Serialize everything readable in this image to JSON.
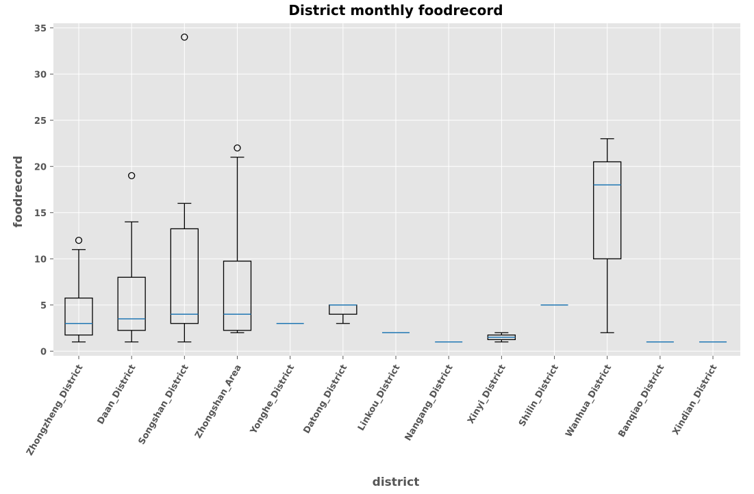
{
  "chart_data": {
    "type": "box",
    "title": "District monthly foodrecord",
    "xlabel": "district",
    "ylabel": "foodrecord",
    "ylim": [
      -0.5,
      35.5
    ],
    "yticks": [
      0,
      5,
      10,
      15,
      20,
      25,
      30,
      35
    ],
    "grid": true,
    "colors": {
      "background": "#e5e5e5",
      "grid": "#ffffff",
      "box": "#000000",
      "median": "#1f77b4",
      "tick_text": "#555555"
    },
    "categories": [
      "Zhongzheng_District",
      "Daan_District",
      "Songshan_District",
      "Zhongshan_Area",
      "Yonghe_District",
      "Datong_District",
      "Linkou_District",
      "Nangang_District",
      "Xinyi_District",
      "Shilin_District",
      "Wanhua_District",
      "Banqiao_District",
      "Xindian_District"
    ],
    "boxes": [
      {
        "whisker_low": 1,
        "q1": 1.75,
        "median": 3,
        "q3": 5.75,
        "whisker_high": 11,
        "outliers": [
          12
        ]
      },
      {
        "whisker_low": 1,
        "q1": 2.25,
        "median": 3.5,
        "q3": 8,
        "whisker_high": 14,
        "outliers": [
          19
        ]
      },
      {
        "whisker_low": 1,
        "q1": 3,
        "median": 4,
        "q3": 13.25,
        "whisker_high": 16,
        "outliers": [
          34
        ]
      },
      {
        "whisker_low": 2,
        "q1": 2.25,
        "median": 4,
        "q3": 9.75,
        "whisker_high": 21,
        "outliers": [
          22
        ]
      },
      {
        "whisker_low": 3,
        "q1": 3,
        "median": 3,
        "q3": 3,
        "whisker_high": 3,
        "outliers": []
      },
      {
        "whisker_low": 3,
        "q1": 4,
        "median": 5,
        "q3": 5,
        "whisker_high": 5,
        "outliers": []
      },
      {
        "whisker_low": 2,
        "q1": 2,
        "median": 2,
        "q3": 2,
        "whisker_high": 2,
        "outliers": []
      },
      {
        "whisker_low": 1,
        "q1": 1,
        "median": 1,
        "q3": 1,
        "whisker_high": 1,
        "outliers": []
      },
      {
        "whisker_low": 1,
        "q1": 1.25,
        "median": 1.5,
        "q3": 1.75,
        "whisker_high": 2,
        "outliers": []
      },
      {
        "whisker_low": 5,
        "q1": 5,
        "median": 5,
        "q3": 5,
        "whisker_high": 5,
        "outliers": []
      },
      {
        "whisker_low": 2,
        "q1": 10,
        "median": 18,
        "q3": 20.5,
        "whisker_high": 23,
        "outliers": []
      },
      {
        "whisker_low": 1,
        "q1": 1,
        "median": 1,
        "q3": 1,
        "whisker_high": 1,
        "outliers": []
      },
      {
        "whisker_low": 1,
        "q1": 1,
        "median": 1,
        "q3": 1,
        "whisker_high": 1,
        "outliers": []
      }
    ]
  }
}
